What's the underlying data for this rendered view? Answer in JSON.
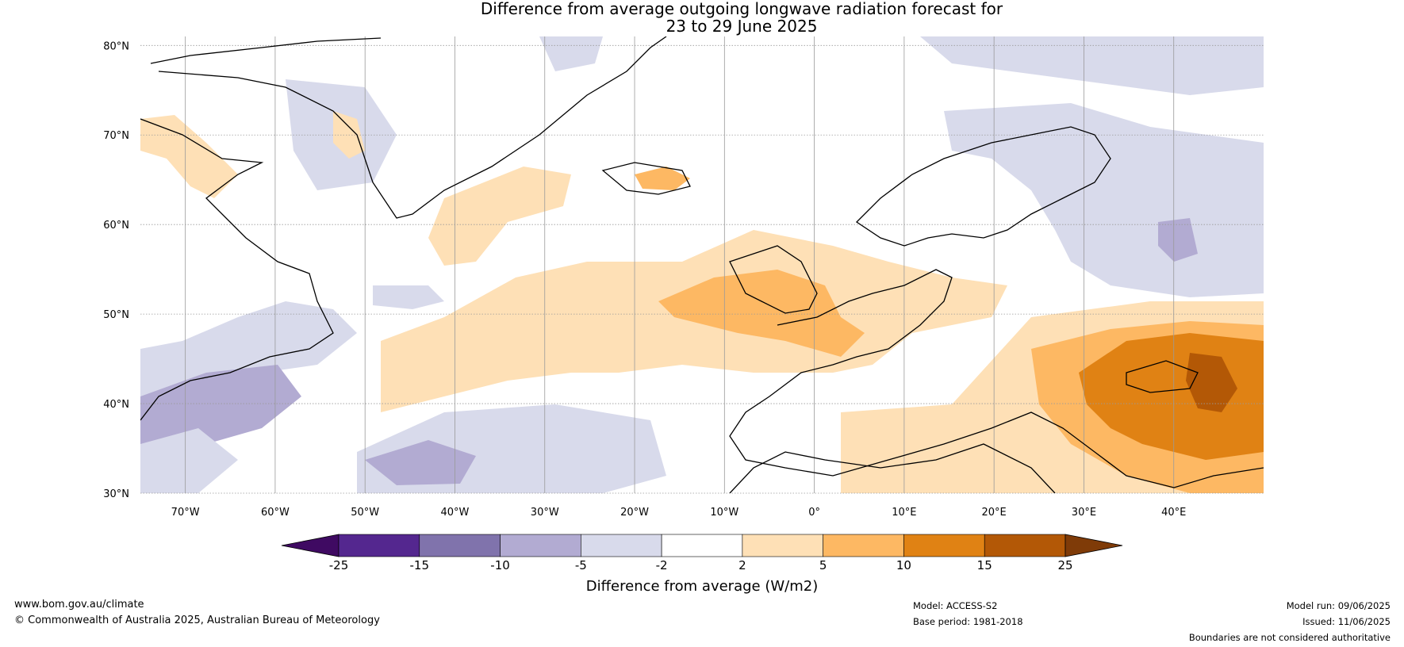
{
  "title": {
    "line1": "Difference from average outgoing longwave radiation forecast for",
    "line2": "23 to 29 June 2025"
  },
  "map": {
    "lat_labels": [
      "80°N",
      "70°N",
      "60°N",
      "50°N",
      "40°N",
      "30°N"
    ],
    "lon_labels": [
      "70°W",
      "60°W",
      "50°W",
      "40°W",
      "30°W",
      "20°W",
      "10°W",
      "0°",
      "10°E",
      "20°E",
      "30°E",
      "40°E"
    ],
    "lat_range": [
      30,
      81
    ],
    "lon_range": [
      -75,
      50
    ]
  },
  "legend": {
    "title": "Difference from average (W/m2)",
    "ticks": [
      "-25",
      "-15",
      "-10",
      "-5",
      "-2",
      "2",
      "5",
      "10",
      "15",
      "25"
    ],
    "colors": [
      "#3f0a62",
      "#54278f",
      "#8073ac",
      "#b2abd2",
      "#d8daeb",
      "#ffffff",
      "#fee0b6",
      "#fdb863",
      "#e08214",
      "#b35806",
      "#7f3b08"
    ]
  },
  "footer": {
    "website": "www.bom.gov.au/climate",
    "copyright": "© Commonwealth of Australia 2025, Australian Bureau of Meteorology",
    "model": "Model: ACCESS-S2",
    "base_period": "Base period: 1981-2018",
    "model_run": "Model run: 09/06/2025",
    "issued": "Issued: 11/06/2025",
    "disclaimer": "Boundaries are not considered authoritative"
  }
}
